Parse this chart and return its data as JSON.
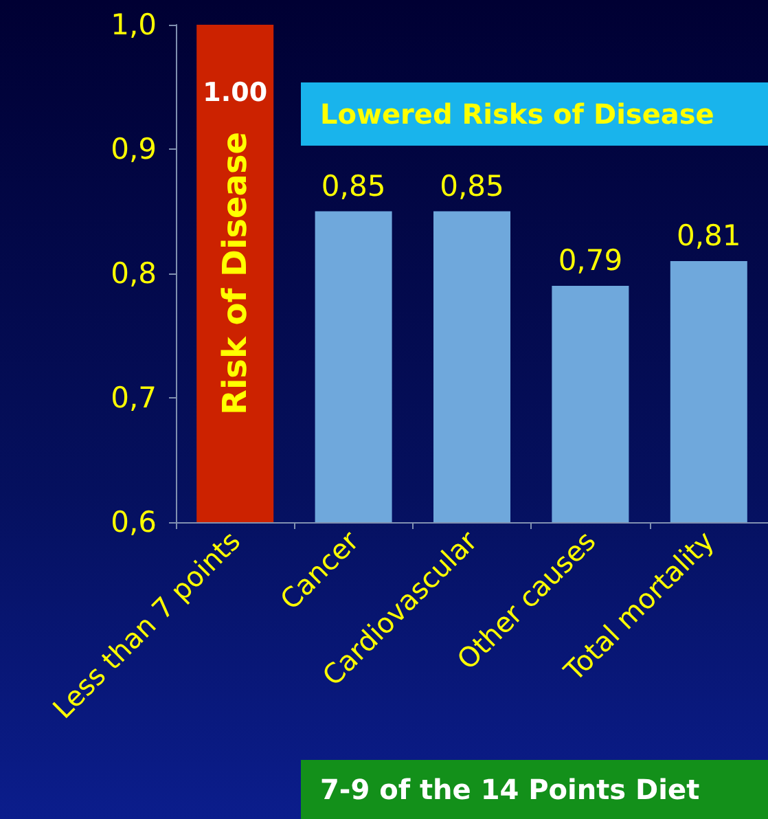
{
  "chart_data": {
    "type": "bar",
    "categories": [
      "Less than 7 points",
      "Cancer",
      "Cardiovascular",
      "Other causes",
      "Total mortality"
    ],
    "values": [
      1.0,
      0.85,
      0.85,
      0.79,
      0.81
    ],
    "colors": [
      "#cc2200",
      "#6fa8dc",
      "#6fa8dc",
      "#6fa8dc",
      "#6fa8dc"
    ],
    "value_labels": [
      "1.00",
      "0,85",
      "0,85",
      "0,79",
      "0,81"
    ],
    "ylim": [
      0.6,
      1.0
    ],
    "yticks": [
      {
        "value": 0.6,
        "label": "0,6"
      },
      {
        "value": 0.7,
        "label": "0,7"
      },
      {
        "value": 0.8,
        "label": "0,8"
      },
      {
        "value": 0.9,
        "label": "0,9"
      },
      {
        "value": 1.0,
        "label": "1,0"
      }
    ],
    "grid": false,
    "annotations": [
      "Risk of Disease",
      "Lowered Risks of Disease",
      "7-9 of the 14 Points Diet"
    ]
  }
}
